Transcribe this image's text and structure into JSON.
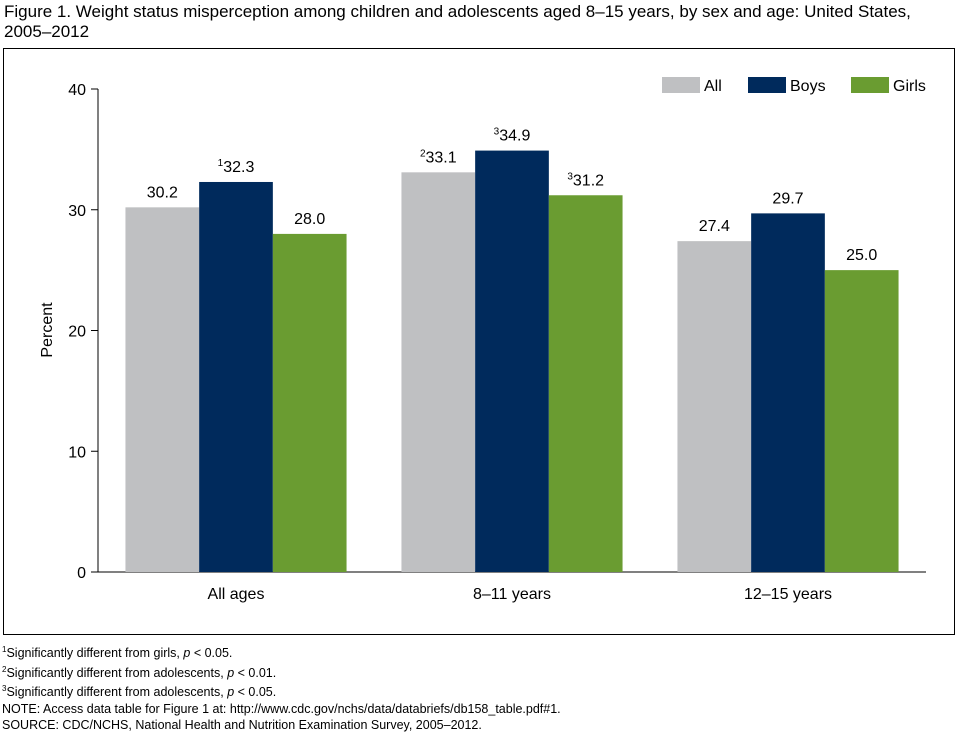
{
  "chart_data": {
    "type": "bar",
    "title": "Figure 1. Weight status misperception among children and adolescents aged 8–15 years, by sex and age: United States, 2005–2012",
    "ylabel": "Percent",
    "categories": [
      "All ages",
      "8–11 years",
      "12–15 years"
    ],
    "series": [
      {
        "name": "All",
        "color": "#bfc0c2",
        "values": [
          30.2,
          33.1,
          27.4
        ],
        "value_labels": [
          "30.2",
          "33.1",
          "27.4"
        ],
        "value_notes": [
          null,
          "2",
          null
        ]
      },
      {
        "name": "Boys",
        "color": "#002a5c",
        "values": [
          32.3,
          34.9,
          29.7
        ],
        "value_labels": [
          "32.3",
          "34.9",
          "29.7"
        ],
        "value_notes": [
          "1",
          "3",
          null
        ]
      },
      {
        "name": "Girls",
        "color": "#6a9c31",
        "values": [
          28.0,
          31.2,
          25.0
        ],
        "value_labels": [
          "28.0",
          "31.2",
          "25.0"
        ],
        "value_notes": [
          null,
          "3",
          null
        ]
      }
    ],
    "ylim": [
      0,
      40
    ],
    "yticks": [
      0,
      10,
      20,
      30,
      40
    ],
    "grid": false,
    "legend": "top-right",
    "footnotes": [
      {
        "mark": "1",
        "text": "Significantly different from girls,",
        "italic": "p",
        "after": "< 0.05."
      },
      {
        "mark": "2",
        "text": "Significantly different from adolescents,",
        "italic": "p",
        "after": "< 0.01."
      },
      {
        "mark": "3",
        "text": "Significantly different from adolescents,",
        "italic": "p",
        "after": "< 0.05."
      }
    ],
    "note": "NOTE: Access data table for Figure 1 at: http://www.cdc.gov/nchs/data/databriefs/db158_table.pdf#1.",
    "source": "SOURCE: CDC/NCHS, National Health and Nutrition Examination Survey, 2005–2012."
  }
}
